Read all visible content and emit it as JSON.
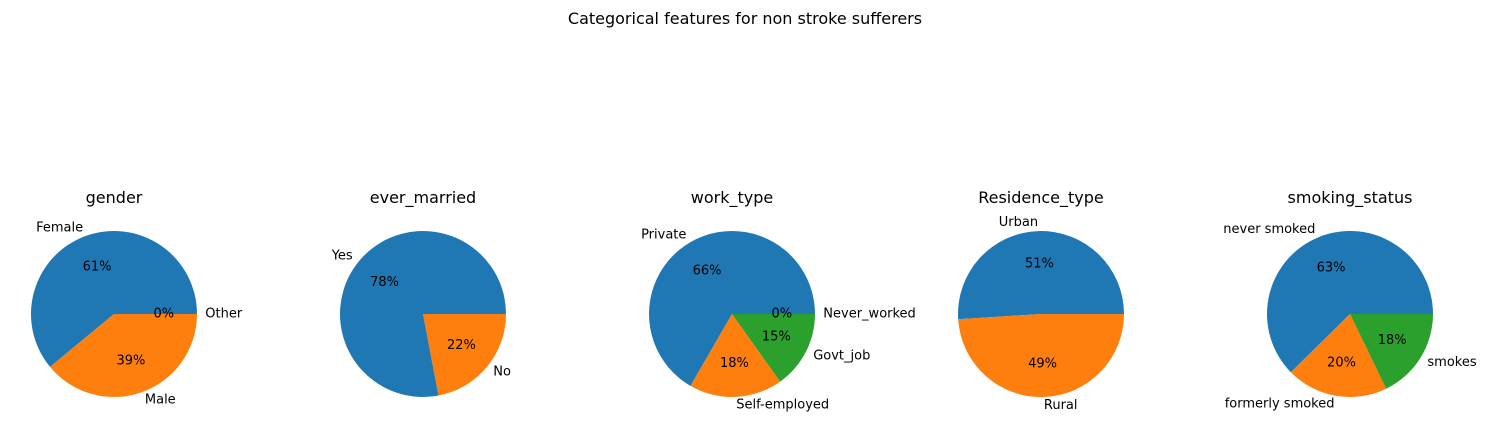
{
  "title": "Categorical features for non stroke sufferers",
  "colors": [
    "#1f77b4",
    "#ff7f0e",
    "#2ca02c"
  ],
  "chart_data": [
    {
      "type": "pie",
      "title": "gender",
      "labels": [
        "Female",
        "Male",
        "Other"
      ],
      "values": [
        61,
        39,
        0
      ],
      "autopct": [
        "61%",
        "39%",
        "0%"
      ]
    },
    {
      "type": "pie",
      "title": "ever_married",
      "labels": [
        "Yes",
        "No"
      ],
      "values": [
        78,
        22
      ],
      "autopct": [
        "78%",
        "22%"
      ]
    },
    {
      "type": "pie",
      "title": "work_type",
      "labels": [
        "Private",
        "Self-employed",
        "Govt_job",
        "Never_worked"
      ],
      "values": [
        66,
        18,
        15,
        0
      ],
      "autopct": [
        "66%",
        "18%",
        "15%",
        "0%"
      ]
    },
    {
      "type": "pie",
      "title": "Residence_type",
      "labels": [
        "Urban",
        "Rural"
      ],
      "values": [
        51,
        49
      ],
      "autopct": [
        "51%",
        "49%"
      ]
    },
    {
      "type": "pie",
      "title": "smoking_status",
      "labels": [
        "never smoked",
        "formerly smoked",
        "smokes"
      ],
      "values": [
        63,
        20,
        18
      ],
      "autopct": [
        "63%",
        "20%",
        "18%"
      ]
    }
  ]
}
